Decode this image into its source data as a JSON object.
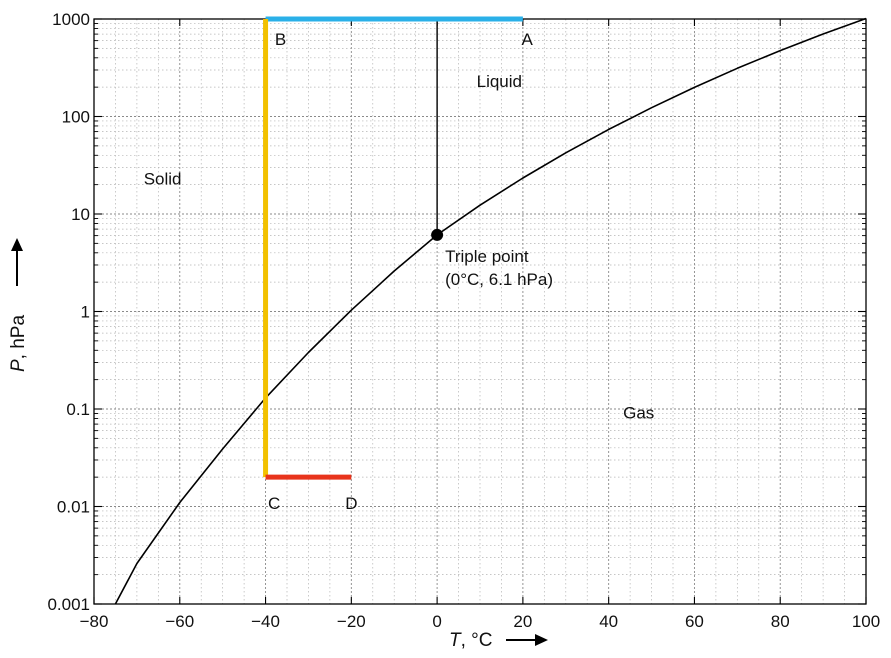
{
  "chart_data": {
    "type": "line",
    "x_axis": {
      "range": [
        -80,
        100
      ],
      "ticks": [
        -80,
        -60,
        -40,
        -20,
        0,
        20,
        40,
        60,
        80,
        100
      ],
      "tick_labels": [
        "−80",
        "−60",
        "−40",
        "−20",
        "0",
        "20",
        "40",
        "60",
        "80",
        "100"
      ],
      "label_var": "T",
      "label_unit": ", °C"
    },
    "y_axis": {
      "scale": "log",
      "range": [
        0.001,
        1000
      ],
      "ticks": [
        0.001,
        0.01,
        0.1,
        1,
        10,
        100,
        1000
      ],
      "tick_labels": [
        "0.001",
        "0.01",
        "0.1",
        "1",
        "10",
        "100",
        "1000"
      ],
      "label_var": "P",
      "label_unit": ", hPa"
    },
    "grid": true,
    "series": [
      {
        "type": "curve",
        "color": "#000000",
        "points": [
          [
            -75,
            0.001
          ],
          [
            -70,
            0.0026
          ],
          [
            -60,
            0.011
          ],
          [
            -50,
            0.039
          ],
          [
            -40,
            0.13
          ],
          [
            -30,
            0.38
          ],
          [
            -20,
            1.03
          ],
          [
            -10,
            2.6
          ],
          [
            0,
            6.1
          ],
          [
            10,
            12.3
          ],
          [
            20,
            23.4
          ],
          [
            30,
            42.4
          ],
          [
            40,
            73.8
          ],
          [
            50,
            123
          ],
          [
            60,
            199
          ],
          [
            70,
            312
          ],
          [
            80,
            474
          ],
          [
            90,
            701
          ],
          [
            100,
            1013
          ]
        ]
      },
      {
        "type": "segment",
        "color": "#000000",
        "points": [
          [
            0,
            6.1
          ],
          [
            0,
            1000
          ]
        ]
      },
      {
        "type": "segment",
        "color": "#2ab0e8",
        "points": [
          [
            -40,
            1000
          ],
          [
            20,
            1000
          ]
        ]
      },
      {
        "type": "segment",
        "color": "#f2c100",
        "points": [
          [
            -40,
            1000
          ],
          [
            -40,
            0.02
          ]
        ]
      },
      {
        "type": "segment",
        "color": "#e8341c",
        "points": [
          [
            -40,
            0.02
          ],
          [
            -20,
            0.02
          ]
        ]
      }
    ],
    "triple_point": {
      "x": 0,
      "y": 6.1,
      "label": [
        "Triple point",
        "(0°C, 6.1 hPa)"
      ]
    },
    "region_labels": [
      {
        "text": "Liquid",
        "x": 14.5,
        "y": 200
      },
      {
        "text": "Solid",
        "x": -64,
        "y": 20
      },
      {
        "text": "Gas",
        "x": 47,
        "y": 0.08
      }
    ],
    "point_labels": [
      {
        "text": "B",
        "x": -36.5,
        "y": 1000
      },
      {
        "text": "A",
        "x": 21,
        "y": 1000
      },
      {
        "text": "C",
        "x": -38,
        "y": 0.02
      },
      {
        "text": "D",
        "x": -20,
        "y": 0.02
      }
    ]
  }
}
